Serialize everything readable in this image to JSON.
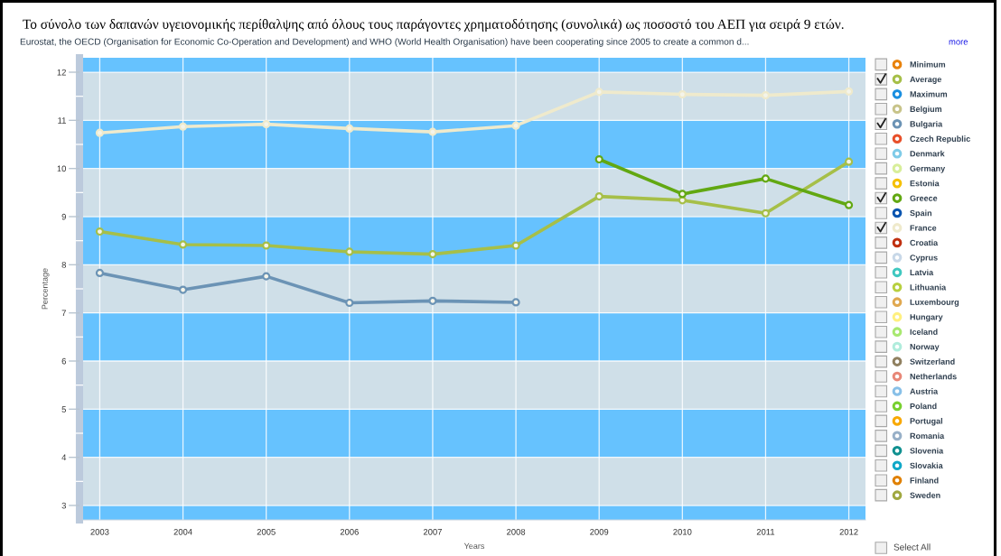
{
  "chart_data": {
    "type": "line",
    "title": "Το σύνολο των δαπανών υγειονομικής περίθαλψης από όλους τους παράγοντες χρηματοδότησης (συνολικά) ως ποσοστό του ΑΕΠ για σειρά 9 ετών.",
    "subtitle": "Eurostat, the OECD (Organisation for Economic Co-Operation and Development) and WHO (World Health Organisation) have been cooperating since 2005 to create a common d...",
    "xlabel": "Years",
    "ylabel": "Percentage",
    "annotations": [
      "more",
      "Select All"
    ],
    "categories": [
      "2003",
      "2004",
      "2005",
      "2006",
      "2007",
      "2008",
      "2009",
      "2010",
      "2011",
      "2012"
    ],
    "ylim": [
      2.7,
      12.3
    ],
    "yticks": [
      3,
      {
        "value": 3.5,
        "label": null
      },
      4,
      {
        "value": 4.5,
        "label": null
      },
      5,
      {
        "value": 5.5,
        "label": null
      },
      6,
      {
        "value": 6.5,
        "label": null
      },
      7,
      {
        "value": 7.5,
        "label": null
      },
      8,
      {
        "value": 8.5,
        "label": null
      },
      9,
      {
        "value": 9.5,
        "label": null
      },
      10,
      {
        "value": 10.5,
        "label": null
      },
      11,
      {
        "value": 11.5,
        "label": null
      },
      12
    ],
    "bands": [
      {
        "axis": "y",
        "from": 2.7,
        "to": 3,
        "color": "#66c2fe"
      },
      {
        "axis": "y",
        "from": 3,
        "to": 4,
        "color": "#cfdfe8"
      },
      {
        "axis": "y",
        "from": 4,
        "to": 5,
        "color": "#66c2fe"
      },
      {
        "axis": "y",
        "from": 5,
        "to": 6,
        "color": "#cfdfe8"
      },
      {
        "axis": "y",
        "from": 6,
        "to": 7,
        "color": "#66c2fe"
      },
      {
        "axis": "y",
        "from": 7,
        "to": 8,
        "color": "#cfdfe8"
      },
      {
        "axis": "y",
        "from": 8,
        "to": 9,
        "color": "#66c2fe"
      },
      {
        "axis": "y",
        "from": 9,
        "to": 10,
        "color": "#cfdfe8"
      },
      {
        "axis": "y",
        "from": 10,
        "to": 11,
        "color": "#66c2fe"
      },
      {
        "axis": "y",
        "from": 11,
        "to": 12,
        "color": "#cfdfe8"
      },
      {
        "axis": "y",
        "from": 12,
        "to": 12.3,
        "color": "#66c2fe"
      }
    ],
    "grid": true,
    "legend": "right",
    "marker": "circle",
    "line_style": "solid",
    "series": [
      {
        "name": "Minimum",
        "color": "#e8820c",
        "values": [
          null,
          null,
          null,
          null,
          null,
          null,
          null,
          null,
          null,
          null
        ]
      },
      {
        "name": "Average",
        "color": "#a6bf48",
        "values": [
          8.69,
          8.42,
          8.4,
          8.27,
          8.22,
          8.4,
          9.42,
          9.34,
          9.07,
          10.14
        ]
      },
      {
        "name": "Maximum",
        "color": "#1a8fe0",
        "values": [
          null,
          null,
          null,
          null,
          null,
          null,
          null,
          null,
          null,
          null
        ]
      },
      {
        "name": "Belgium",
        "color": "#c8c48a",
        "values": [
          null,
          null,
          null,
          null,
          null,
          null,
          null,
          null,
          null,
          null
        ]
      },
      {
        "name": "Bulgaria",
        "color": "#6b93b5",
        "values": [
          7.83,
          7.48,
          7.76,
          7.21,
          7.25,
          7.22,
          null,
          null,
          null,
          null
        ]
      },
      {
        "name": "Czech Republic",
        "color": "#e8502a",
        "values": [
          null,
          null,
          null,
          null,
          null,
          null,
          null,
          null,
          null,
          null
        ]
      },
      {
        "name": "Denmark",
        "color": "#7fcbe8",
        "values": [
          null,
          null,
          null,
          null,
          null,
          null,
          null,
          null,
          null,
          null
        ]
      },
      {
        "name": "Germany",
        "color": "#d8ee9a",
        "values": [
          null,
          null,
          null,
          null,
          null,
          null,
          null,
          null,
          null,
          null
        ]
      },
      {
        "name": "Estonia",
        "color": "#f5c000",
        "values": [
          null,
          null,
          null,
          null,
          null,
          null,
          null,
          null,
          null,
          null
        ]
      },
      {
        "name": "Greece",
        "color": "#62a812",
        "values": [
          null,
          null,
          null,
          null,
          null,
          null,
          10.19,
          9.47,
          9.79,
          9.24
        ]
      },
      {
        "name": "Spain",
        "color": "#0a55b0",
        "values": [
          null,
          null,
          null,
          null,
          null,
          null,
          null,
          null,
          null,
          null
        ]
      },
      {
        "name": "France",
        "color": "#efeacc",
        "values": [
          10.74,
          10.87,
          10.92,
          10.83,
          10.76,
          10.89,
          11.59,
          11.54,
          11.52,
          11.6
        ]
      },
      {
        "name": "Croatia",
        "color": "#c03010",
        "values": [
          null,
          null,
          null,
          null,
          null,
          null,
          null,
          null,
          null,
          null
        ]
      },
      {
        "name": "Cyprus",
        "color": "#c8d8e8",
        "values": [
          null,
          null,
          null,
          null,
          null,
          null,
          null,
          null,
          null,
          null
        ]
      },
      {
        "name": "Latvia",
        "color": "#40c8c0",
        "values": [
          null,
          null,
          null,
          null,
          null,
          null,
          null,
          null,
          null,
          null
        ]
      },
      {
        "name": "Lithuania",
        "color": "#b8d040",
        "values": [
          null,
          null,
          null,
          null,
          null,
          null,
          null,
          null,
          null,
          null
        ]
      },
      {
        "name": "Luxembourg",
        "color": "#e0a850",
        "values": [
          null,
          null,
          null,
          null,
          null,
          null,
          null,
          null,
          null,
          null
        ]
      },
      {
        "name": "Hungary",
        "color": "#fff080",
        "values": [
          null,
          null,
          null,
          null,
          null,
          null,
          null,
          null,
          null,
          null
        ]
      },
      {
        "name": "Iceland",
        "color": "#a8e870",
        "values": [
          null,
          null,
          null,
          null,
          null,
          null,
          null,
          null,
          null,
          null
        ]
      },
      {
        "name": "Norway",
        "color": "#b0ecdc",
        "values": [
          null,
          null,
          null,
          null,
          null,
          null,
          null,
          null,
          null,
          null
        ]
      },
      {
        "name": "Switzerland",
        "color": "#908060",
        "values": [
          null,
          null,
          null,
          null,
          null,
          null,
          null,
          null,
          null,
          null
        ]
      },
      {
        "name": "Netherlands",
        "color": "#e88878",
        "values": [
          null,
          null,
          null,
          null,
          null,
          null,
          null,
          null,
          null,
          null
        ]
      },
      {
        "name": "Austria",
        "color": "#88c0e8",
        "values": [
          null,
          null,
          null,
          null,
          null,
          null,
          null,
          null,
          null,
          null
        ]
      },
      {
        "name": "Poland",
        "color": "#78d030",
        "values": [
          null,
          null,
          null,
          null,
          null,
          null,
          null,
          null,
          null,
          null
        ]
      },
      {
        "name": "Portugal",
        "color": "#f8a800",
        "values": [
          null,
          null,
          null,
          null,
          null,
          null,
          null,
          null,
          null,
          null
        ]
      },
      {
        "name": "Romania",
        "color": "#98b0c8",
        "values": [
          null,
          null,
          null,
          null,
          null,
          null,
          null,
          null,
          null,
          null
        ]
      },
      {
        "name": "Slovenia",
        "color": "#109090",
        "values": [
          null,
          null,
          null,
          null,
          null,
          null,
          null,
          null,
          null,
          null
        ]
      },
      {
        "name": "Slovakia",
        "color": "#10a8c8",
        "values": [
          null,
          null,
          null,
          null,
          null,
          null,
          null,
          null,
          null,
          null
        ]
      },
      {
        "name": "Finland",
        "color": "#e08000",
        "values": [
          null,
          null,
          null,
          null,
          null,
          null,
          null,
          null,
          null,
          null
        ]
      },
      {
        "name": "Sweden",
        "color": "#a0a840",
        "values": [
          null,
          null,
          null,
          null,
          null,
          null,
          null,
          null,
          null,
          null
        ]
      }
    ]
  }
}
